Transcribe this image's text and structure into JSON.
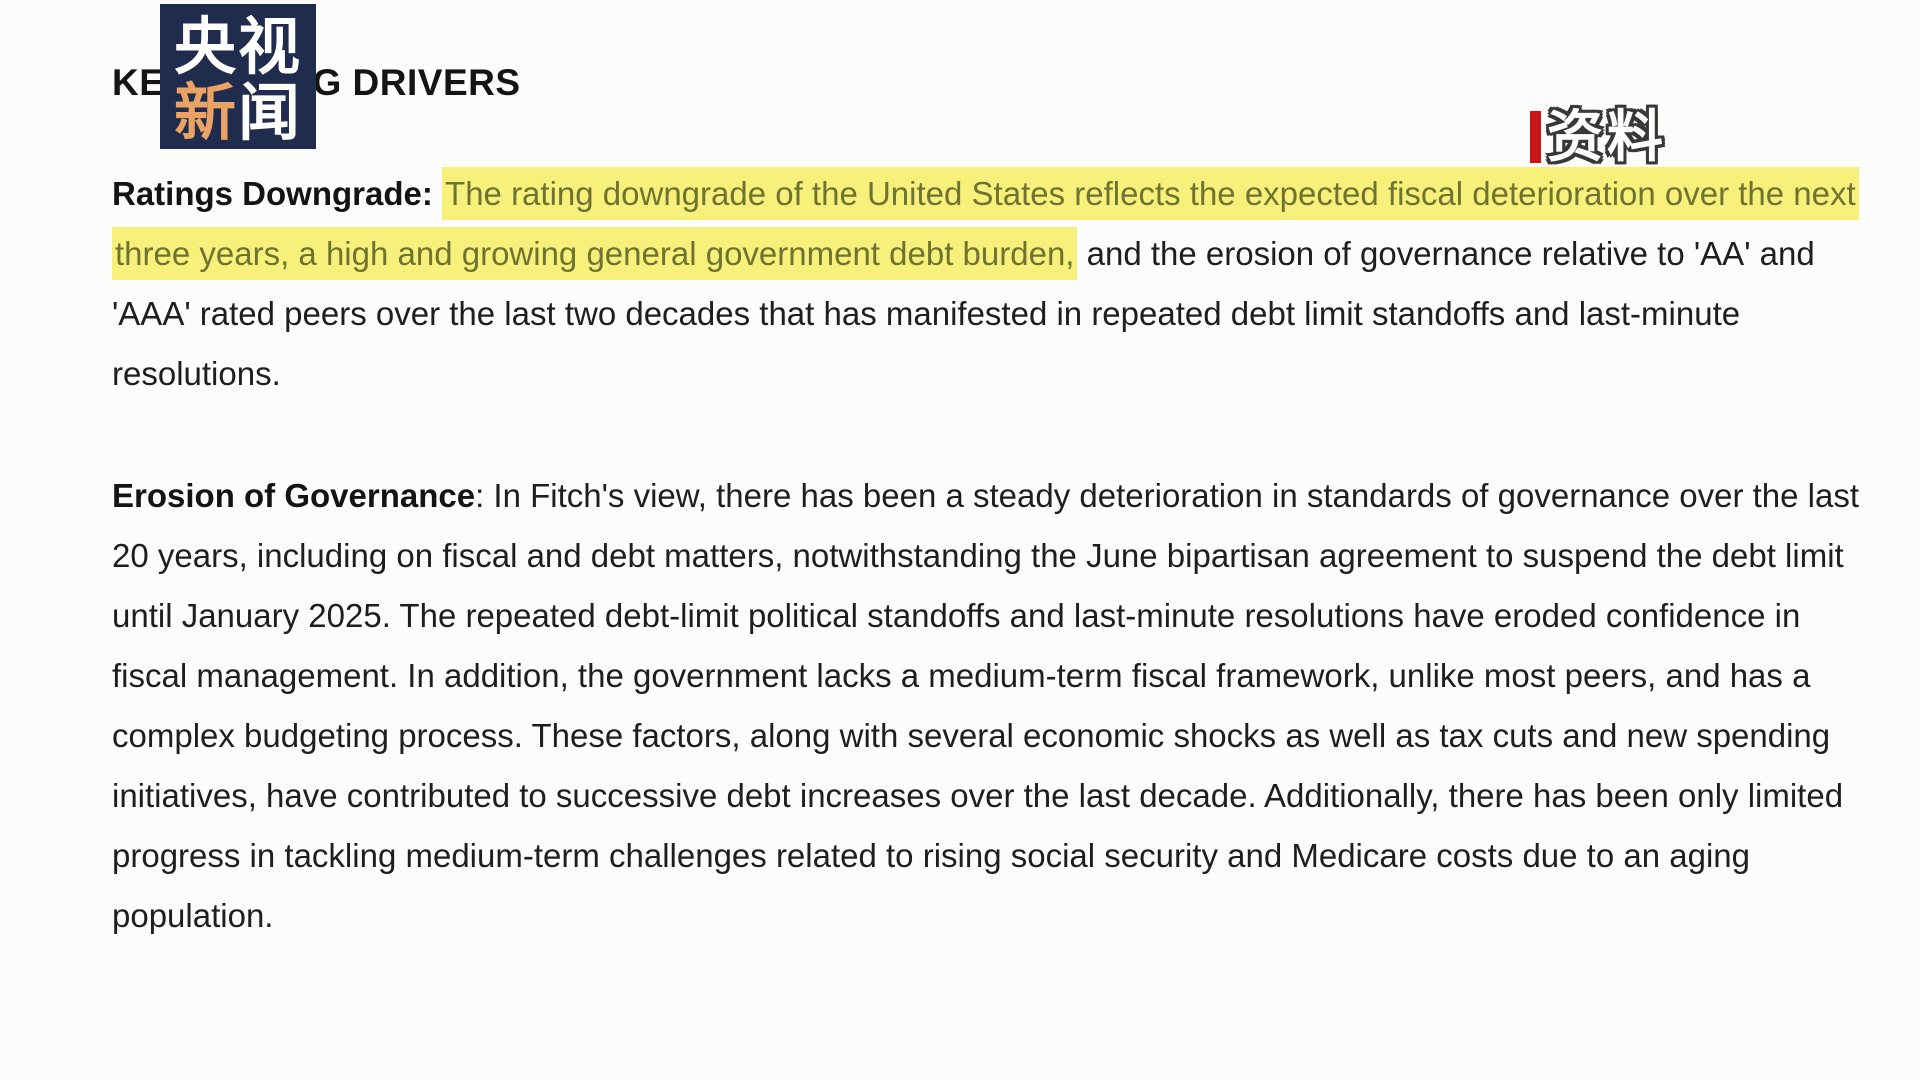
{
  "colors": {
    "page-bg": "#fcfcfa",
    "text": "#1e1e1c",
    "highlight-bg": "#f7f17c",
    "highlight-text": "#6e7330",
    "logo-bg": "#202c4e",
    "logo-accent": "#eba365",
    "watermark-bar": "#c9151a",
    "watermark-text": "#ffffff"
  },
  "logo": {
    "row1": "央视",
    "row2_char1": "新",
    "row2_char2": "闻"
  },
  "heading": {
    "text": "KEY RATING DRIVERS"
  },
  "watermark": {
    "label": "资料"
  },
  "paragraphs": [
    {
      "name": "ratings-downgrade",
      "segments": [
        {
          "style": "bold",
          "text": "Ratings Downgrade: "
        },
        {
          "style": "highlight",
          "text": "The rating downgrade of the United States reflects the expected fiscal deterioration over the next three years, a high and growing general government debt burden,"
        },
        {
          "style": "plain",
          "text": " and the erosion of governance relative to 'AA' and 'AAA' rated peers over the last two decades that has manifested in repeated debt limit standoffs and last-minute resolutions."
        }
      ]
    },
    {
      "name": "erosion-of-governance",
      "segments": [
        {
          "style": "bold",
          "text": "Erosion of Governance"
        },
        {
          "style": "plain",
          "text": ": In Fitch's view, there has been a steady deterioration in standards of governance over the last 20 years, including on fiscal and debt matters, notwithstanding the June bipartisan agreement to suspend the debt limit until January 2025. The repeated debt-limit political standoffs and last-minute resolutions have eroded confidence in fiscal management. In addition, the government lacks a medium-term fiscal framework, unlike most peers, and has a complex budgeting process. These factors, along with several economic shocks as well as tax cuts and new spending initiatives, have contributed to successive debt increases over the last decade. Additionally, there has been only limited progress in tackling medium-term challenges related to rising social security and Medicare costs due to an aging population."
        }
      ]
    }
  ]
}
